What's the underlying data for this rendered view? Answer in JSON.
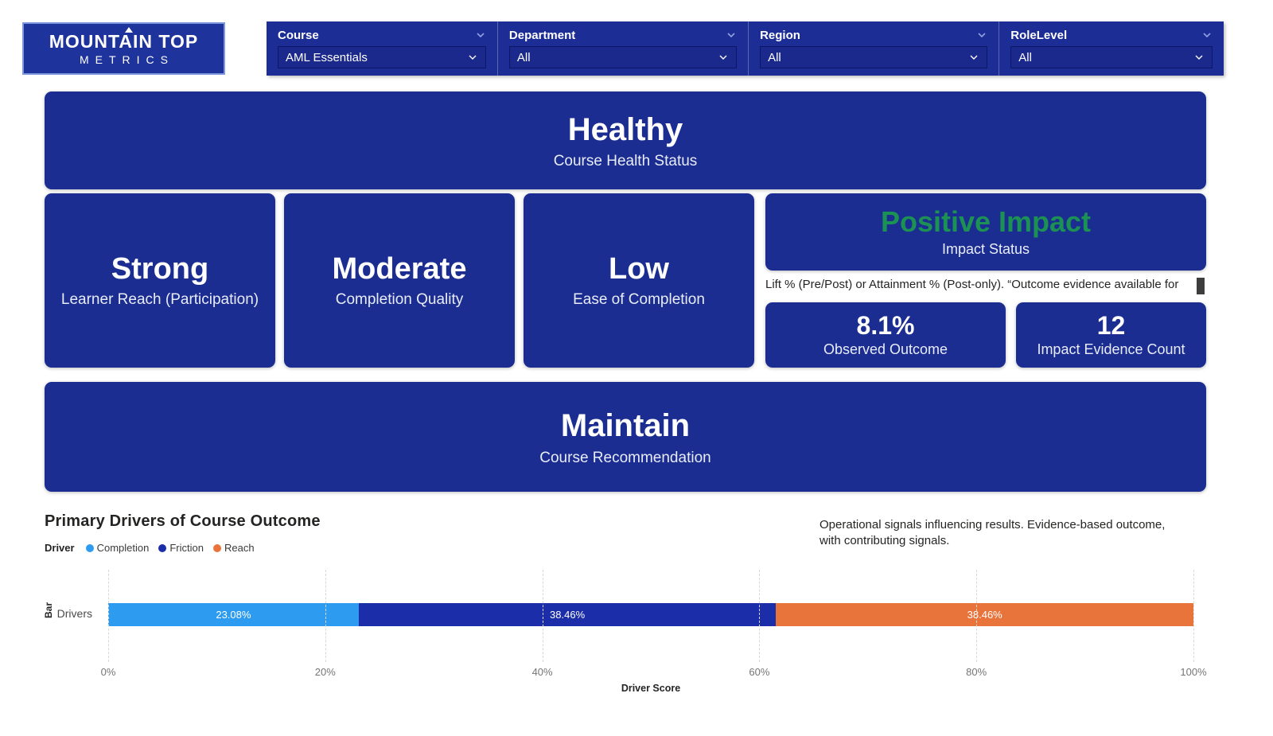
{
  "brand": {
    "line1": "MOUNTAIN TOP",
    "line2": "METRICS"
  },
  "filters": [
    {
      "label": "Course",
      "value": "AML Essentials"
    },
    {
      "label": "Department",
      "value": "All"
    },
    {
      "label": "Region",
      "value": "All"
    },
    {
      "label": "RoleLevel",
      "value": "All"
    }
  ],
  "cards": {
    "health": {
      "value": "Healthy",
      "label": "Course Health Status"
    },
    "reach": {
      "value": "Strong",
      "label": "Learner Reach (Participation)"
    },
    "quality": {
      "value": "Moderate",
      "label": "Completion Quality"
    },
    "ease": {
      "value": "Low",
      "label": "Ease of Completion"
    },
    "impact": {
      "value": "Positive Impact",
      "label": "Impact Status"
    },
    "impact_note": "Lift % (Pre/Post) or Attainment % (Post-only). “Outcome evidence available for",
    "observed": {
      "value": "8.1%",
      "label": "Observed Outcome"
    },
    "evidence": {
      "value": "12",
      "label": "Impact Evidence Count"
    },
    "recommendation": {
      "value": "Maintain",
      "label": "Course Recommendation"
    }
  },
  "chart": {
    "title": "Primary Drivers of Course Outcome",
    "legend_title": "Driver",
    "note_line1": "Operational signals influencing results. Evidence-based outcome,",
    "note_line2": "with contributing signals."
  },
  "chart_data": {
    "type": "bar",
    "orientation": "horizontal",
    "stacked": true,
    "categories": [
      "Drivers"
    ],
    "series": [
      {
        "name": "Completion",
        "values": [
          23.08
        ],
        "color": "#2D9BF0",
        "label": "23.08%"
      },
      {
        "name": "Friction",
        "values": [
          38.46
        ],
        "color": "#1B2DA8",
        "label": "38.46%"
      },
      {
        "name": "Reach",
        "values": [
          38.46
        ],
        "color": "#E8743B",
        "label": "38.46%"
      }
    ],
    "xlabel": "Driver Score",
    "ylabel": "Bar",
    "xlim": [
      0,
      100
    ],
    "xticks": [
      "0%",
      "20%",
      "40%",
      "60%",
      "80%",
      "100%"
    ],
    "grid": true,
    "legend_position": "top-left"
  },
  "colors": {
    "card_blue": "#1B2D90",
    "filterbar_blue": "#1D2D96",
    "logo_blue": "#1E339B",
    "impact_green": "#1B9254",
    "completion_blue": "#2D9BF0",
    "friction_navy": "#1B2DA8",
    "reach_orange": "#E8743B"
  }
}
